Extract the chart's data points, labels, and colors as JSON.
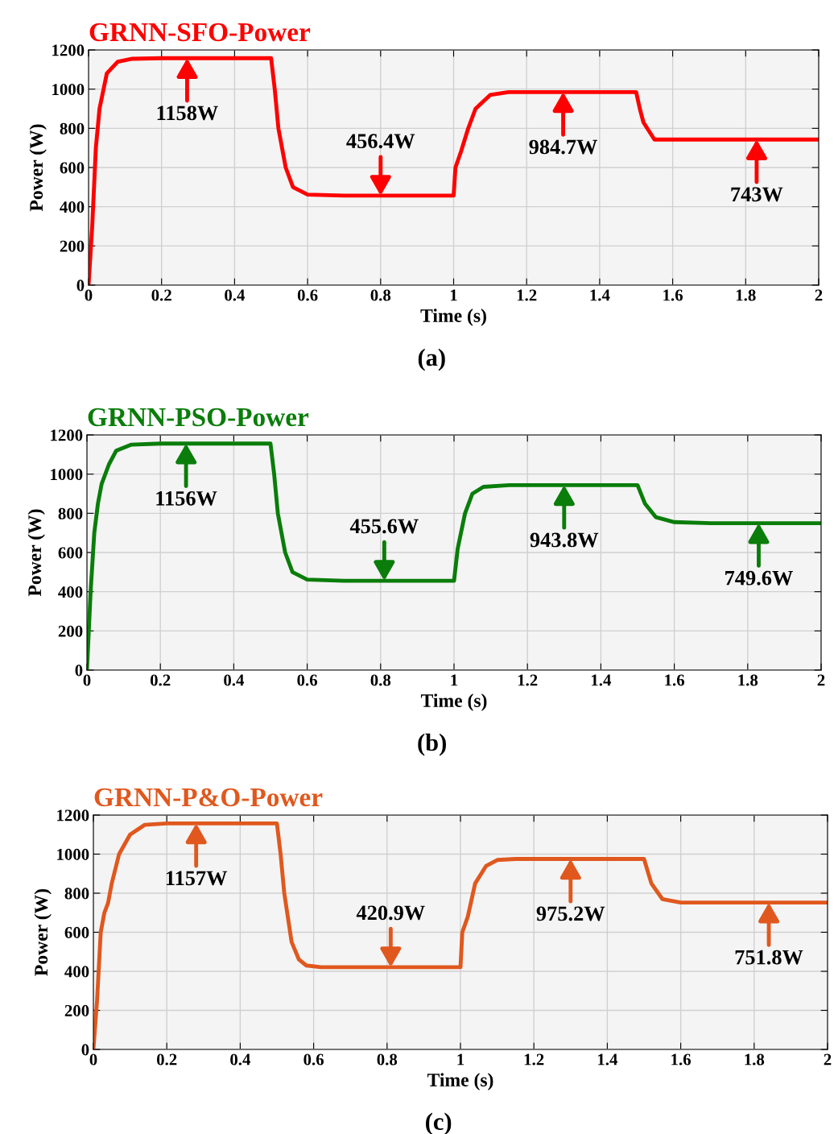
{
  "chart_data": [
    {
      "type": "line",
      "title": "GRNN-SFO-Power",
      "xlabel": "Time (s)",
      "ylabel": "Power (W)",
      "xlim": [
        0,
        2
      ],
      "ylim": [
        0,
        1200
      ],
      "xticks": [
        0,
        0.2,
        0.4,
        0.6,
        0.8,
        1,
        1.2,
        1.4,
        1.6,
        1.8,
        2
      ],
      "yticks": [
        0,
        200,
        400,
        600,
        800,
        1000,
        1200
      ],
      "grid": true,
      "series": [
        {
          "color": "#ff0000",
          "x": [
            0,
            0.01,
            0.02,
            0.03,
            0.05,
            0.08,
            0.12,
            0.2,
            0.5,
            0.51,
            0.52,
            0.54,
            0.56,
            0.6,
            0.7,
            1.0,
            1.005,
            1.02,
            1.04,
            1.06,
            1.1,
            1.15,
            1.5,
            1.51,
            1.52,
            1.55,
            2.0
          ],
          "values": [
            0,
            300,
            700,
            900,
            1080,
            1140,
            1155,
            1158,
            1158,
            1000,
            800,
            600,
            500,
            462,
            456.4,
            456.4,
            600,
            680,
            800,
            900,
            970,
            984.7,
            984.7,
            900,
            830,
            743,
            743
          ]
        }
      ],
      "annotations": [
        {
          "text": "1158W",
          "x": 0.27,
          "y": 1158
        },
        {
          "text": "456.4W",
          "x": 0.8,
          "y": 456.4
        },
        {
          "text": "984.7W",
          "x": 1.3,
          "y": 984.7
        },
        {
          "text": "743W",
          "x": 1.83,
          "y": 743
        },
        "(a)"
      ]
    },
    {
      "type": "line",
      "title": "GRNN-PSO-Power",
      "xlabel": "Time (s)",
      "ylabel": "Power (W)",
      "xlim": [
        0,
        2
      ],
      "ylim": [
        0,
        1200
      ],
      "xticks": [
        0,
        0.2,
        0.4,
        0.6,
        0.8,
        1,
        1.2,
        1.4,
        1.6,
        1.8,
        2
      ],
      "yticks": [
        0,
        200,
        400,
        600,
        800,
        1000,
        1200
      ],
      "grid": true,
      "series": [
        {
          "color": "#0a7d0a",
          "x": [
            0,
            0.01,
            0.02,
            0.03,
            0.04,
            0.06,
            0.08,
            0.12,
            0.2,
            0.5,
            0.51,
            0.52,
            0.54,
            0.56,
            0.6,
            0.7,
            1.0,
            1.01,
            1.03,
            1.05,
            1.08,
            1.15,
            1.5,
            1.52,
            1.55,
            1.6,
            1.7,
            2.0
          ],
          "values": [
            0,
            400,
            700,
            850,
            950,
            1050,
            1120,
            1150,
            1156,
            1156,
            1000,
            800,
            600,
            500,
            462,
            455.6,
            455.6,
            620,
            800,
            900,
            935,
            943.8,
            943.8,
            850,
            780,
            755,
            749.6,
            749.6
          ]
        }
      ],
      "annotations": [
        {
          "text": "1156W",
          "x": 0.27,
          "y": 1156
        },
        {
          "text": "455.6W",
          "x": 0.81,
          "y": 455.6
        },
        {
          "text": "943.8W",
          "x": 1.3,
          "y": 943.8
        },
        {
          "text": "749.6W",
          "x": 1.83,
          "y": 749.6
        },
        "(b)"
      ]
    },
    {
      "type": "line",
      "title": "GRNN-P&O-Power",
      "xlabel": "Time (s)",
      "ylabel": "Power (W)",
      "xlim": [
        0,
        2
      ],
      "ylim": [
        0,
        1200
      ],
      "xticks": [
        0,
        0.2,
        0.4,
        0.6,
        0.8,
        1,
        1.2,
        1.4,
        1.6,
        1.8,
        2
      ],
      "yticks": [
        0,
        200,
        400,
        600,
        800,
        1000,
        1200
      ],
      "grid": true,
      "series": [
        {
          "color": "#e0581e",
          "x": [
            0,
            0.01,
            0.02,
            0.03,
            0.04,
            0.05,
            0.07,
            0.1,
            0.14,
            0.2,
            0.5,
            0.51,
            0.52,
            0.54,
            0.56,
            0.58,
            0.62,
            1.0,
            1.005,
            1.02,
            1.04,
            1.07,
            1.1,
            1.15,
            1.5,
            1.52,
            1.55,
            1.6,
            2.0
          ],
          "values": [
            0,
            250,
            600,
            700,
            750,
            850,
            1000,
            1100,
            1150,
            1157,
            1157,
            1000,
            800,
            550,
            460,
            430,
            420.9,
            420.9,
            600,
            680,
            850,
            940,
            970,
            975.2,
            975.2,
            850,
            770,
            752,
            751.8
          ]
        }
      ],
      "annotations": [
        {
          "text": "1157W",
          "x": 0.28,
          "y": 1157
        },
        {
          "text": "420.9W",
          "x": 0.81,
          "y": 420.9
        },
        {
          "text": "975.2W",
          "x": 1.3,
          "y": 975.2
        },
        {
          "text": "751.8W",
          "x": 1.84,
          "y": 751.8
        },
        "(c)"
      ]
    }
  ]
}
